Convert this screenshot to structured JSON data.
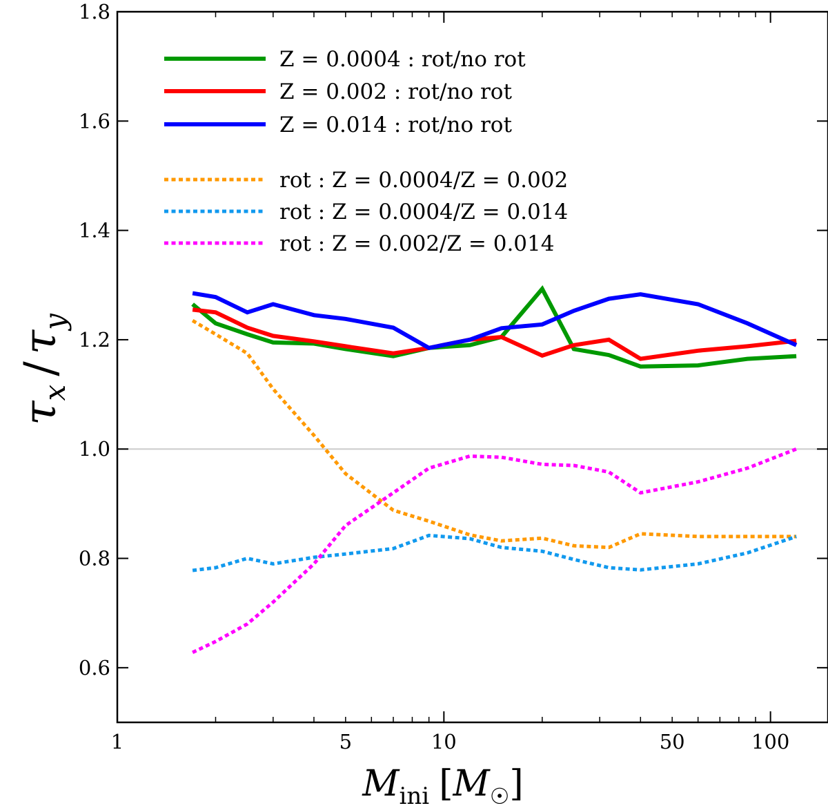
{
  "chart_data": {
    "type": "line",
    "x_scale": "log",
    "xlim": [
      1,
      150
    ],
    "ylim": [
      0.5,
      1.8
    ],
    "xlabel": "M_ini [M_☉]",
    "xlabel_parts": {
      "main": "M",
      "sub": "ini",
      "bracket_main": "M",
      "bracket_sub": "☉"
    },
    "ylabel": "τ_x / τ_y",
    "ylabel_parts": {
      "a": "τ",
      "a_sub": "x",
      "sep": "/",
      "b": "τ",
      "b_sub": "y"
    },
    "x_ticks": [
      {
        "value": 1,
        "label": "1"
      },
      {
        "value": 5,
        "label": "5"
      },
      {
        "value": 10,
        "label": "10"
      },
      {
        "value": 50,
        "label": "50"
      },
      {
        "value": 100,
        "label": "100"
      }
    ],
    "y_ticks": [
      {
        "value": 0.6,
        "label": "0.6"
      },
      {
        "value": 0.8,
        "label": "0.8"
      },
      {
        "value": 1.0,
        "label": "1.0"
      },
      {
        "value": 1.2,
        "label": "1.2"
      },
      {
        "value": 1.4,
        "label": "1.4"
      },
      {
        "value": 1.6,
        "label": "1.6"
      },
      {
        "value": 1.8,
        "label": "1.8"
      }
    ],
    "reference_line": {
      "y": 1.0,
      "color": "#cccccc"
    },
    "legend_position": "top-left",
    "series": [
      {
        "name": "Z = 0.0004 : rot/no rot",
        "legend_label": "Z = 0.0004 : rot/no rot",
        "color": "#009900",
        "style": "solid",
        "x": [
          1.7,
          2,
          2.5,
          3,
          4,
          5,
          7,
          9,
          12,
          15,
          20,
          25,
          32,
          40,
          60,
          85,
          120
        ],
        "y": [
          1.265,
          1.23,
          1.21,
          1.195,
          1.193,
          1.183,
          1.17,
          1.185,
          1.19,
          1.205,
          1.293,
          1.183,
          1.172,
          1.151,
          1.153,
          1.165,
          1.17
        ]
      },
      {
        "name": "Z = 0.002 : rot/no rot",
        "legend_label": "Z = 0.002 : rot/no rot",
        "color": "#ff0000",
        "style": "solid",
        "x": [
          1.7,
          2,
          2.5,
          3,
          4,
          5,
          7,
          9,
          12,
          15,
          20,
          25,
          32,
          40,
          60,
          85,
          120
        ],
        "y": [
          1.255,
          1.25,
          1.222,
          1.207,
          1.197,
          1.188,
          1.175,
          1.185,
          1.2,
          1.205,
          1.171,
          1.19,
          1.2,
          1.165,
          1.18,
          1.188,
          1.198
        ]
      },
      {
        "name": "Z = 0.014 : rot/no rot",
        "legend_label": "Z = 0.014 : rot/no rot",
        "color": "#0000ff",
        "style": "solid",
        "x": [
          1.7,
          2,
          2.5,
          3,
          4,
          5,
          7,
          9,
          12,
          15,
          20,
          25,
          32,
          40,
          60,
          85,
          120
        ],
        "y": [
          1.285,
          1.278,
          1.25,
          1.265,
          1.245,
          1.238,
          1.222,
          1.185,
          1.2,
          1.221,
          1.228,
          1.253,
          1.275,
          1.283,
          1.265,
          1.23,
          1.19
        ]
      },
      {
        "name": "rot : Z = 0.0004/Z = 0.002",
        "legend_label": "rot : Z = 0.0004/Z = 0.002",
        "color": "#ff9900",
        "style": "dotted",
        "x": [
          1.7,
          2,
          2.5,
          3,
          4,
          5,
          7,
          9,
          12,
          15,
          20,
          25,
          32,
          40,
          60,
          85,
          120
        ],
        "y": [
          1.235,
          1.21,
          1.175,
          1.11,
          1.025,
          0.955,
          0.888,
          0.868,
          0.843,
          0.832,
          0.837,
          0.823,
          0.82,
          0.845,
          0.84,
          0.84,
          0.84
        ]
      },
      {
        "name": "rot : Z = 0.0004/Z = 0.014",
        "legend_label": "rot : Z = 0.0004/Z = 0.014",
        "color": "#1199ee",
        "style": "dotted",
        "x": [
          1.7,
          2,
          2.5,
          3,
          4,
          5,
          7,
          9,
          12,
          15,
          20,
          25,
          32,
          40,
          60,
          85,
          120
        ],
        "y": [
          0.778,
          0.783,
          0.8,
          0.79,
          0.802,
          0.808,
          0.818,
          0.842,
          0.836,
          0.82,
          0.813,
          0.798,
          0.783,
          0.779,
          0.79,
          0.81,
          0.84
        ]
      },
      {
        "name": "rot : Z = 0.002/Z = 0.014",
        "legend_label": "rot : Z = 0.002/Z = 0.014",
        "color": "#ff00ff",
        "style": "dotted",
        "x": [
          1.7,
          2,
          2.5,
          3,
          4,
          5,
          7,
          9,
          12,
          15,
          20,
          25,
          32,
          40,
          60,
          85,
          120
        ],
        "y": [
          0.628,
          0.648,
          0.68,
          0.72,
          0.79,
          0.86,
          0.92,
          0.965,
          0.987,
          0.985,
          0.972,
          0.97,
          0.958,
          0.92,
          0.94,
          0.965,
          1.0
        ]
      }
    ]
  }
}
